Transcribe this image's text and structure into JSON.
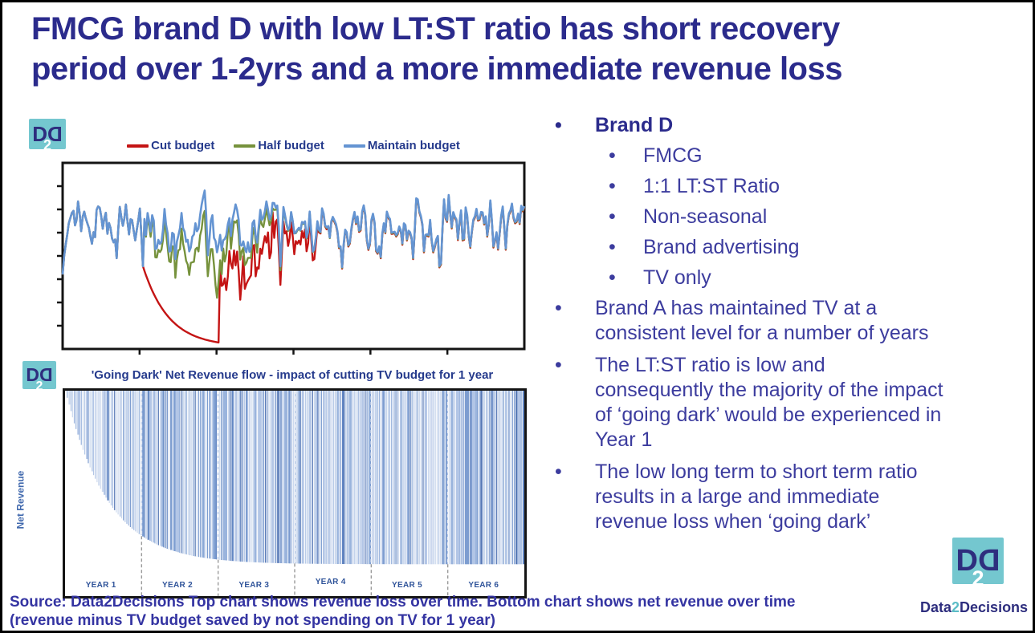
{
  "title": {
    "line1": "FMCG brand D with low LT:ST ratio has short recovery",
    "line2": "period over 1-2yrs and a more immediate revenue loss"
  },
  "top_chart": {
    "legend": [
      {
        "label": "Cut budget",
        "color": "#c41414"
      },
      {
        "label": "Half budget",
        "color": "#76923c"
      },
      {
        "label": "Maintain budget",
        "color": "#6494d2"
      }
    ]
  },
  "bottom_chart": {
    "title": "'Going Dark' Net Revenue flow - impact of cutting TV budget for 1 year",
    "ylabel": "Net Revenue",
    "year_labels": [
      "YEAR 1",
      "YEAR 2",
      "YEAR 3",
      "YEAR 4",
      "YEAR 5",
      "YEAR 6"
    ]
  },
  "bullets": {
    "marker": "•",
    "brand": {
      "label": "Brand D",
      "subs": [
        "FMCG",
        "1:1 LT:ST Ratio",
        "Non-seasonal",
        "Brand advertising",
        "TV only"
      ]
    },
    "points": [
      "Brand A has maintained TV at a consistent level for a number of years",
      "The LT:ST ratio is low and consequently the majority of the impact of ‘going dark’ would be experienced in Year 1",
      "The low long term to short term ratio results in a large and immediate revenue loss when ‘going dark’"
    ]
  },
  "source": {
    "line1": "Source: Data2Decisions Top chart shows revenue loss over time. Bottom chart shows net revenue over time",
    "line2": "(revenue minus TV budget saved by not spending on TV for 1 year)"
  },
  "branding": {
    "logo": {
      "d1": "D",
      "two": "2",
      "d2": "D"
    },
    "wordmark": {
      "pre": "Data",
      "two": "2",
      "post": "Decisions"
    },
    "teal": "#74c7cf",
    "navy": "#2e2e7e"
  },
  "chart_data": [
    {
      "type": "line",
      "title": "",
      "xlabel": "time (~6 years of weekly data, axis unlabeled)",
      "ylabel": "revenue (axis unlabeled)",
      "legend_position": "top",
      "grid": false,
      "axis_tick_labels": "none (unlabeled tick marks only)",
      "series": [
        {
          "name": "Maintain budget",
          "color": "#6494d2",
          "description": "noisy weekly revenue oscillating around a constant mean for the whole period",
          "keyframes_t_yfrac_from_bottom": [
            [
              0,
              0.4
            ],
            [
              0.05,
              0.66
            ],
            [
              0.5,
              0.66
            ],
            [
              1,
              0.66
            ]
          ],
          "noise_range_yfrac": [
            0.45,
            0.88
          ]
        },
        {
          "name": "Cut budget",
          "color": "#c41414",
          "description": "tracks Maintain budget until TV is cut, decays smoothly to near zero during the dark year, then jumps back and recovers with high volatility, merging with Maintain budget",
          "keyframes_t_yfrac_from_bottom": [
            [
              0,
              0.66
            ],
            [
              0.17,
              0.44
            ],
            [
              0.25,
              0.15
            ],
            [
              0.33,
              0.035
            ],
            [
              0.345,
              0.55
            ],
            [
              0.45,
              0.5
            ],
            [
              0.58,
              0.66
            ],
            [
              1,
              0.66
            ]
          ]
        },
        {
          "name": "Half budget",
          "color": "#76923c",
          "description": "tracks Maintain budget until budget is halved, drifts noisily lower during the dark year, then recovers and merges with Maintain budget",
          "keyframes_t_yfrac_from_bottom": [
            [
              0,
              0.66
            ],
            [
              0.17,
              0.44
            ],
            [
              0.25,
              0.38
            ],
            [
              0.33,
              0.28
            ],
            [
              0.36,
              0.5
            ],
            [
              0.5,
              0.62
            ],
            [
              1,
              0.66
            ]
          ]
        }
      ],
      "gen": {
        "seed": 7,
        "points": 300,
        "base": 0.335,
        "amp": 0.16,
        "dip_start": 0.174,
        "dip_end": 0.338,
        "merge_end": 0.58,
        "sep_y": 0.555,
        "dip_bottom": 0.965,
        "decay_k": 18,
        "red_recovery_off": 0.26,
        "green_gap": 0.16,
        "green_recovery_off": 0.1,
        "green_merge_end": 0.5,
        "start_y": [
          0.6,
          0.5,
          0.44
        ],
        "frame_color": "#141414",
        "left_ticks": 7,
        "bottom_ticks": 5
      }
    },
    {
      "type": "bar",
      "title": "'Going Dark' Net Revenue flow - impact of cutting TV budget for 1 year",
      "xlabel": "",
      "ylabel": "Net Revenue",
      "categories": [
        "YEAR 1",
        "YEAR 2",
        "YEAR 3",
        "YEAR 4",
        "YEAR 5",
        "YEAR 6"
      ],
      "description": "dense vertical bars hang from the top of the plot; bar length (net revenue loss) grows along a decaying curve through Year 1-2 and plateaus from Year 3 onward; dashed vertical gridlines separate the six years",
      "envelope_keyframes_years_vs_fraction_of_height": [
        [
          0,
          0
        ],
        [
          0.5,
          0.5
        ],
        [
          1,
          0.71
        ],
        [
          1.5,
          0.79
        ],
        [
          2,
          0.825
        ],
        [
          3,
          0.845
        ],
        [
          6,
          0.845
        ]
      ],
      "gen": {
        "seed": 13,
        "bars": 262,
        "plateau": 0.845,
        "tau": 0.55,
        "years": 6,
        "palette": [
          "#ccd9ee",
          "#b3c6e6",
          "#9ab4dd",
          "#7d9dd0",
          "#6286c2",
          "#5577b5"
        ],
        "weights": [
          0.25,
          0.25,
          0.2,
          0.14,
          0.1,
          0.06
        ],
        "dash_light": "#e9edf5",
        "dash_gray": "#9a9a9a"
      }
    }
  ]
}
